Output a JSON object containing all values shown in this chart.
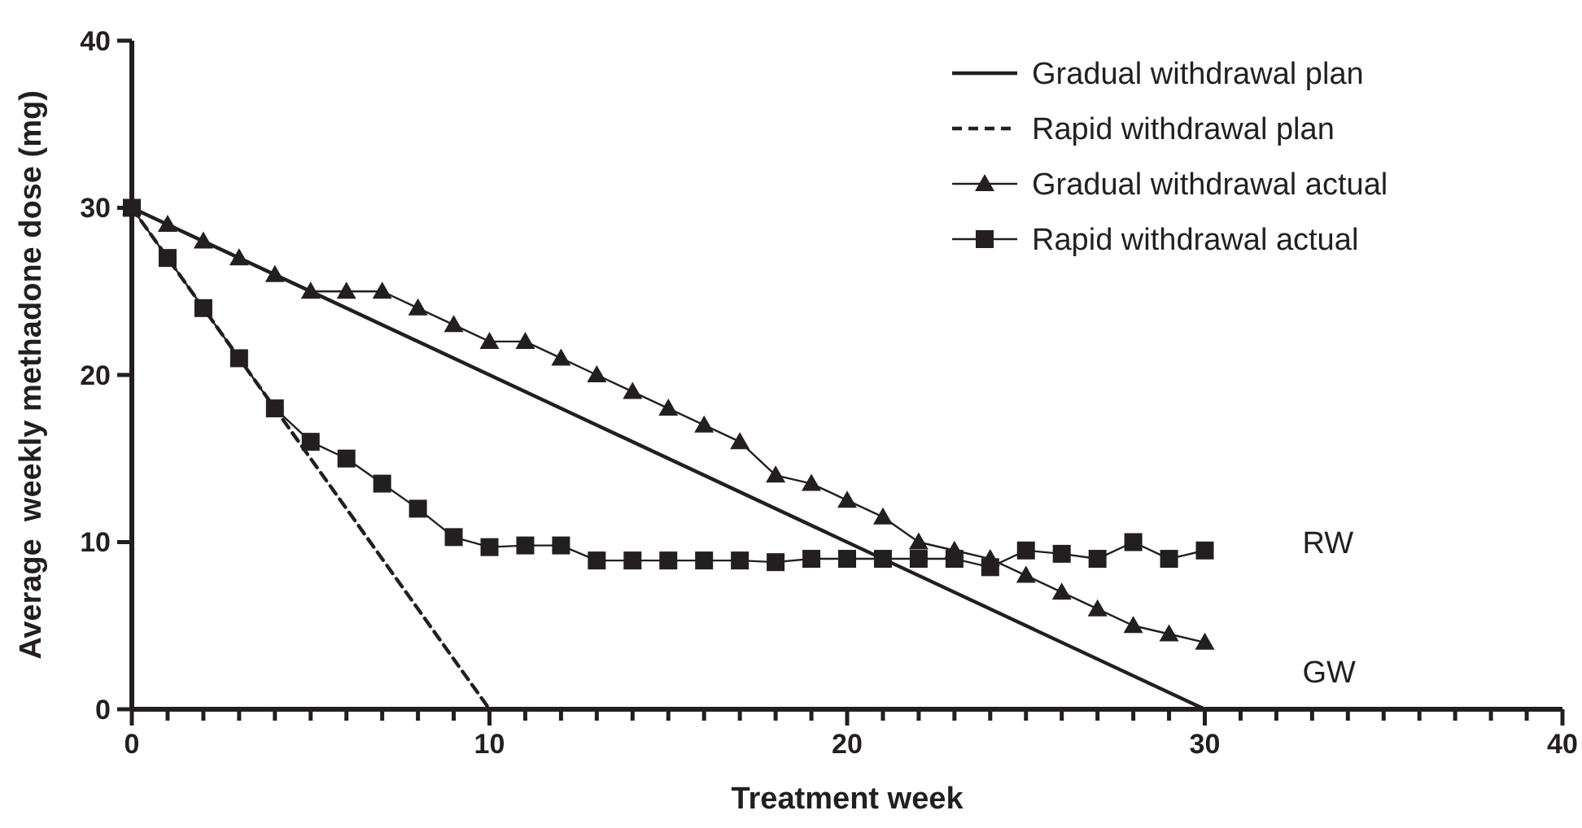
{
  "chart_data": {
    "type": "line",
    "xlabel": "Treatment week",
    "ylabel": "Average  weekly methadone dose (mg)",
    "xlim": [
      0,
      40
    ],
    "ylim": [
      0,
      40
    ],
    "xticks": [
      0,
      {
        "value": 1,
        "label": null
      },
      {
        "value": 2,
        "label": null
      },
      {
        "value": 3,
        "label": null
      },
      {
        "value": 4,
        "label": null
      },
      {
        "value": 5,
        "label": null
      },
      {
        "value": 6,
        "label": null
      },
      {
        "value": 7,
        "label": null
      },
      {
        "value": 8,
        "label": null
      },
      {
        "value": 9,
        "label": null
      },
      10,
      {
        "value": 11,
        "label": null
      },
      {
        "value": 12,
        "label": null
      },
      {
        "value": 13,
        "label": null
      },
      {
        "value": 14,
        "label": null
      },
      {
        "value": 15,
        "label": null
      },
      {
        "value": 16,
        "label": null
      },
      {
        "value": 17,
        "label": null
      },
      {
        "value": 18,
        "label": null
      },
      {
        "value": 19,
        "label": null
      },
      20,
      {
        "value": 21,
        "label": null
      },
      {
        "value": 22,
        "label": null
      },
      {
        "value": 23,
        "label": null
      },
      {
        "value": 24,
        "label": null
      },
      {
        "value": 25,
        "label": null
      },
      {
        "value": 26,
        "label": null
      },
      {
        "value": 27,
        "label": null
      },
      {
        "value": 28,
        "label": null
      },
      {
        "value": 29,
        "label": null
      },
      30,
      {
        "value": 31,
        "label": null
      },
      {
        "value": 32,
        "label": null
      },
      {
        "value": 33,
        "label": null
      },
      {
        "value": 34,
        "label": null
      },
      {
        "value": 35,
        "label": null
      },
      {
        "value": 36,
        "label": null
      },
      {
        "value": 37,
        "label": null
      },
      {
        "value": 38,
        "label": null
      },
      {
        "value": 39,
        "label": null
      },
      40
    ],
    "yticks": [
      0,
      10,
      20,
      30,
      40
    ],
    "grid": false,
    "legend": "top right",
    "series": [
      {
        "name": "Gradual withdrawal plan",
        "color": "#231f20",
        "x": [
          0,
          30
        ],
        "values": [
          30,
          0
        ],
        "line_style": "solid"
      },
      {
        "name": "Rapid withdrawal plan",
        "color": "#231f20",
        "x": [
          0,
          10
        ],
        "values": [
          30,
          0
        ],
        "line_style": "dashed"
      },
      {
        "name": "Gradual withdrawal actual",
        "color": "#231f20",
        "x": [
          0,
          1,
          2,
          3,
          4,
          5,
          6,
          7,
          8,
          9,
          10,
          11,
          12,
          13,
          14,
          15,
          16,
          17,
          18,
          19,
          20,
          21,
          22,
          23,
          24,
          25,
          26,
          27,
          28,
          29,
          30
        ],
        "values": [
          30,
          29,
          28,
          27,
          26,
          25,
          25,
          25,
          24,
          23,
          22,
          22,
          21,
          20,
          19,
          18,
          17,
          16,
          14,
          13.5,
          12.5,
          11.5,
          10,
          9.5,
          9,
          8,
          7,
          6,
          5,
          4.5,
          4
        ],
        "marker": "triangle",
        "line_style": "solid"
      },
      {
        "name": "Rapid withdrawal actual",
        "color": "#231f20",
        "x": [
          0,
          1,
          2,
          3,
          4,
          5,
          6,
          7,
          8,
          9,
          10,
          11,
          12,
          13,
          14,
          15,
          16,
          17,
          18,
          19,
          20,
          21,
          22,
          23,
          24,
          25,
          26,
          27,
          28,
          29,
          30
        ],
        "values": [
          30,
          27,
          24,
          21,
          18,
          16,
          15,
          13.5,
          12,
          10.3,
          9.7,
          9.8,
          9.8,
          8.9,
          8.9,
          8.9,
          8.9,
          8.9,
          8.8,
          9,
          9,
          9,
          9,
          9,
          8.5,
          9.5,
          9.3,
          9,
          10,
          9,
          9.5
        ],
        "marker": "square",
        "line_style": "solid"
      }
    ],
    "annotations": [
      "RW",
      "GW"
    ]
  }
}
